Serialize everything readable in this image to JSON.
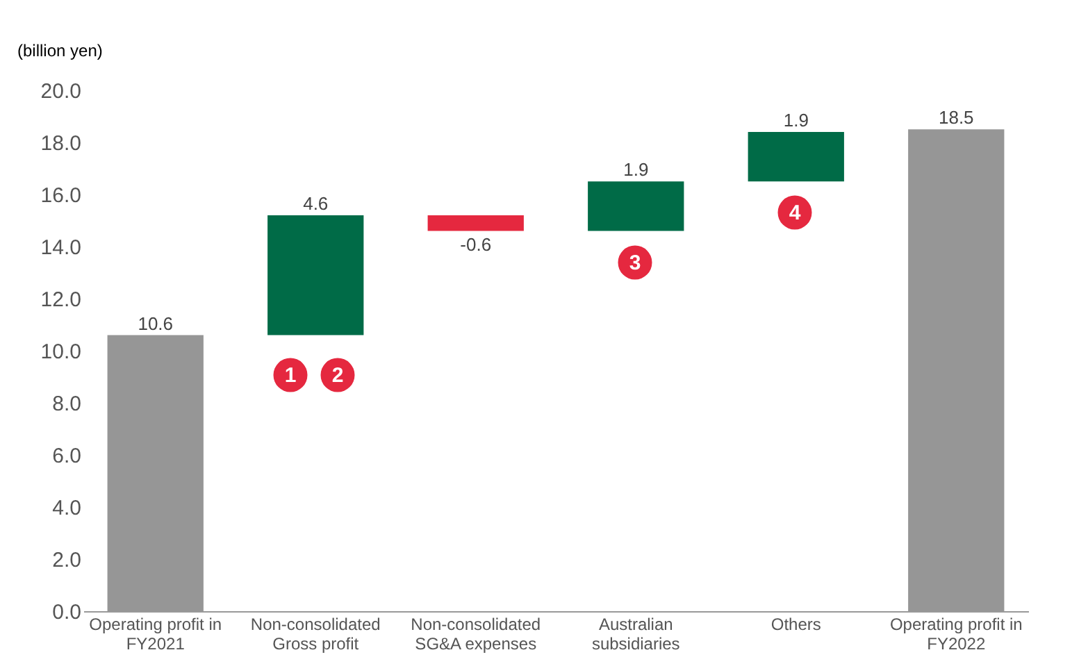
{
  "chart_data": {
    "type": "bar",
    "ylabel": "(billion yen)",
    "categories": [
      "Operating profit in\nFY2021",
      "Non-consolidated\nGross profit",
      "Non-consolidated\nSG&A expenses",
      "Australian\nsubsidiaries",
      "Others",
      "Operating profit in\nFY2022"
    ],
    "values": [
      10.6,
      4.6,
      -0.6,
      1.9,
      1.9,
      18.5
    ],
    "base": [
      0,
      10.6,
      15.2,
      14.6,
      16.5,
      0
    ],
    "colors": [
      "#969696",
      "#006b47",
      "#e5283f",
      "#006b47",
      "#006b47",
      "#969696"
    ],
    "data_labels": true,
    "ylim": [
      0,
      20
    ],
    "yticks": [
      {
        "value": 0,
        "label": "0.0"
      },
      {
        "value": 2,
        "label": "2.0"
      },
      {
        "value": 4,
        "label": "4.0"
      },
      {
        "value": 6,
        "label": "6.0"
      },
      {
        "value": 8,
        "label": "8.0"
      },
      {
        "value": 10,
        "label": "10.0"
      },
      {
        "value": 12,
        "label": "12.0"
      },
      {
        "value": 14,
        "label": "14.0"
      },
      {
        "value": 16,
        "label": "16.0"
      },
      {
        "value": 18,
        "label": "18.0"
      },
      {
        "value": 20,
        "label": "20.0"
      }
    ],
    "grid": false,
    "annotations": [
      "1",
      "2",
      "3",
      "4"
    ]
  }
}
